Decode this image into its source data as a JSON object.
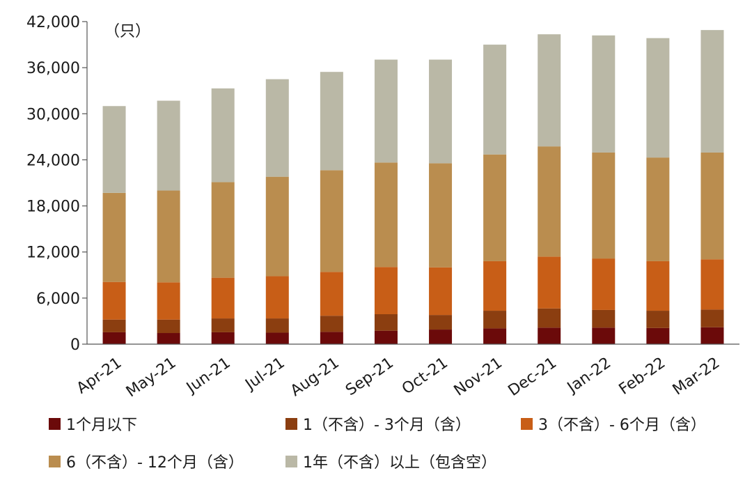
{
  "chart_data": {
    "type": "bar",
    "stacked": true,
    "unit_label": "（只）",
    "categories": [
      "Apr-21",
      "May-21",
      "Jun-21",
      "Jul-21",
      "Aug-21",
      "Sep-21",
      "Oct-21",
      "Nov-21",
      "Dec-21",
      "Jan-22",
      "Feb-22",
      "Mar-22"
    ],
    "ylim": [
      0,
      42000
    ],
    "yticks": [
      0,
      6000,
      12000,
      18000,
      24000,
      30000,
      36000,
      42000
    ],
    "ytick_labels": [
      "0",
      "6,000",
      "12,000",
      "18,000",
      "24,000",
      "30,000",
      "36,000",
      "42,000"
    ],
    "series": [
      {
        "name": "1个月以下",
        "color": "#6b0a0a",
        "values": [
          1550,
          1450,
          1550,
          1500,
          1600,
          1750,
          1900,
          2050,
          2150,
          2150,
          2100,
          2200
        ]
      },
      {
        "name": "1（不含）- 3个月（含）",
        "color": "#8b3e10",
        "values": [
          1650,
          1750,
          1800,
          1850,
          2100,
          2150,
          1900,
          2300,
          2500,
          2300,
          2250,
          2300
        ]
      },
      {
        "name": "3（不含）- 6个月（含）",
        "color": "#c85e17",
        "values": [
          4900,
          4850,
          5300,
          5500,
          5700,
          6150,
          6200,
          6450,
          6750,
          6700,
          6450,
          6550
        ]
      },
      {
        "name": "6（不含）- 12个月（含）",
        "color": "#ba8d4f",
        "values": [
          11600,
          11950,
          12450,
          12950,
          13250,
          13600,
          13550,
          13900,
          14350,
          13800,
          13500,
          13900
        ]
      },
      {
        "name": "1年（不含）以上（包含空）",
        "color": "#bab8a6",
        "values": [
          11300,
          11700,
          12200,
          12700,
          12800,
          13400,
          13500,
          14300,
          14600,
          15250,
          15550,
          15950
        ]
      }
    ],
    "legend_position": "bottom"
  }
}
